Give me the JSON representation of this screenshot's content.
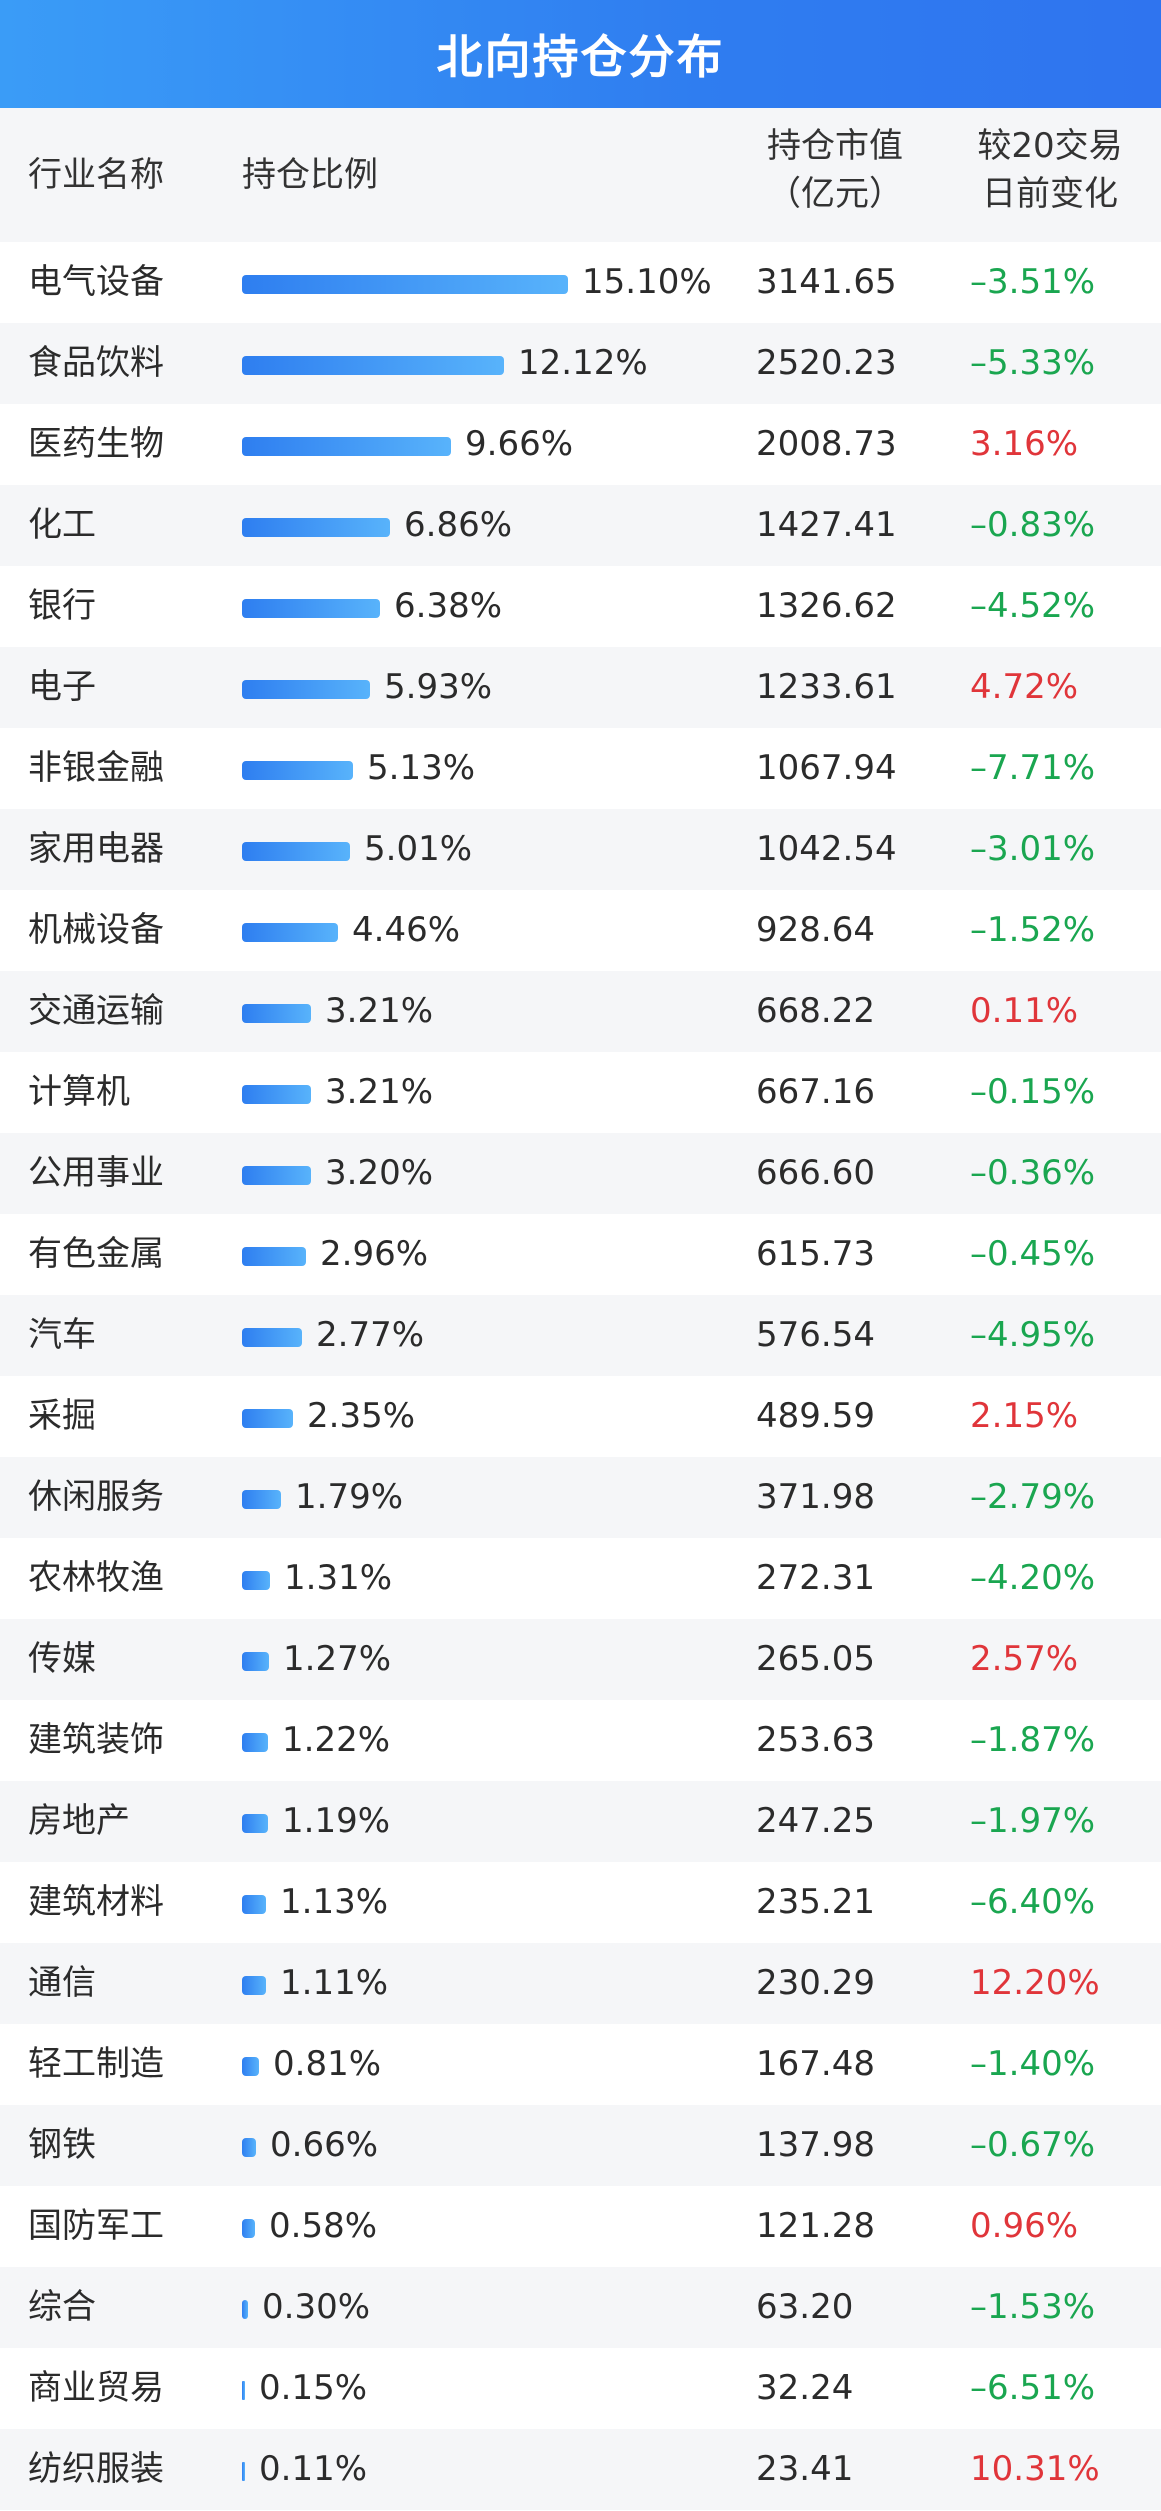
{
  "title": "北向持仓分布",
  "header": {
    "industry": "行业名称",
    "ratio": "持仓比例",
    "value_line1": "持仓市值",
    "value_line2": "（亿元）",
    "change_line1": "较20交易",
    "change_line2": "日前变化"
  },
  "colors": {
    "title_bg": "#2f7df0",
    "bar": "#3a8ff3",
    "negative": "#1aa650",
    "positive": "#e0353a"
  },
  "chart_data": {
    "type": "bar",
    "title": "北向持仓分布",
    "series": [
      {
        "values": [
          15.1,
          12.12,
          9.66,
          6.86,
          6.38,
          5.93,
          5.13,
          5.01,
          4.46,
          3.21,
          3.21,
          3.2,
          2.96,
          2.77,
          2.35,
          1.79,
          1.31,
          1.27,
          1.22,
          1.19,
          1.13,
          1.11,
          0.81,
          0.66,
          0.58,
          0.3,
          0.15,
          0.11
        ]
      }
    ],
    "rows": [
      {
        "name": "电气设备",
        "pct": 15.1,
        "pct_label": "15.10%",
        "value": "3141.65",
        "change": "–3.51%",
        "sign": "neg"
      },
      {
        "name": "食品饮料",
        "pct": 12.12,
        "pct_label": "12.12%",
        "value": "2520.23",
        "change": "–5.33%",
        "sign": "neg"
      },
      {
        "name": "医药生物",
        "pct": 9.66,
        "pct_label": "9.66%",
        "value": "2008.73",
        "change": "3.16%",
        "sign": "pos"
      },
      {
        "name": "化工",
        "pct": 6.86,
        "pct_label": "6.86%",
        "value": "1427.41",
        "change": "–0.83%",
        "sign": "neg"
      },
      {
        "name": "银行",
        "pct": 6.38,
        "pct_label": "6.38%",
        "value": "1326.62",
        "change": "–4.52%",
        "sign": "neg"
      },
      {
        "name": "电子",
        "pct": 5.93,
        "pct_label": "5.93%",
        "value": "1233.61",
        "change": "4.72%",
        "sign": "pos"
      },
      {
        "name": "非银金融",
        "pct": 5.13,
        "pct_label": "5.13%",
        "value": "1067.94",
        "change": "–7.71%",
        "sign": "neg"
      },
      {
        "name": "家用电器",
        "pct": 5.01,
        "pct_label": "5.01%",
        "value": "1042.54",
        "change": "–3.01%",
        "sign": "neg"
      },
      {
        "name": "机械设备",
        "pct": 4.46,
        "pct_label": "4.46%",
        "value": "928.64",
        "change": "–1.52%",
        "sign": "neg"
      },
      {
        "name": "交通运输",
        "pct": 3.21,
        "pct_label": "3.21%",
        "value": "668.22",
        "change": "0.11%",
        "sign": "pos"
      },
      {
        "name": "计算机",
        "pct": 3.21,
        "pct_label": "3.21%",
        "value": "667.16",
        "change": "–0.15%",
        "sign": "neg"
      },
      {
        "name": "公用事业",
        "pct": 3.2,
        "pct_label": "3.20%",
        "value": "666.60",
        "change": "–0.36%",
        "sign": "neg"
      },
      {
        "name": "有色金属",
        "pct": 2.96,
        "pct_label": "2.96%",
        "value": "615.73",
        "change": "–0.45%",
        "sign": "neg"
      },
      {
        "name": "汽车",
        "pct": 2.77,
        "pct_label": "2.77%",
        "value": "576.54",
        "change": "–4.95%",
        "sign": "neg"
      },
      {
        "name": "采掘",
        "pct": 2.35,
        "pct_label": "2.35%",
        "value": "489.59",
        "change": "2.15%",
        "sign": "pos"
      },
      {
        "name": "休闲服务",
        "pct": 1.79,
        "pct_label": "1.79%",
        "value": "371.98",
        "change": "–2.79%",
        "sign": "neg"
      },
      {
        "name": "农林牧渔",
        "pct": 1.31,
        "pct_label": "1.31%",
        "value": "272.31",
        "change": "–4.20%",
        "sign": "neg"
      },
      {
        "name": "传媒",
        "pct": 1.27,
        "pct_label": "1.27%",
        "value": "265.05",
        "change": "2.57%",
        "sign": "pos"
      },
      {
        "name": "建筑装饰",
        "pct": 1.22,
        "pct_label": "1.22%",
        "value": "253.63",
        "change": "–1.87%",
        "sign": "neg"
      },
      {
        "name": "房地产",
        "pct": 1.19,
        "pct_label": "1.19%",
        "value": "247.25",
        "change": "–1.97%",
        "sign": "neg"
      },
      {
        "name": "建筑材料",
        "pct": 1.13,
        "pct_label": "1.13%",
        "value": "235.21",
        "change": "–6.40%",
        "sign": "neg"
      },
      {
        "name": "通信",
        "pct": 1.11,
        "pct_label": "1.11%",
        "value": "230.29",
        "change": "12.20%",
        "sign": "pos"
      },
      {
        "name": "轻工制造",
        "pct": 0.81,
        "pct_label": "0.81%",
        "value": "167.48",
        "change": "–1.40%",
        "sign": "neg"
      },
      {
        "name": "钢铁",
        "pct": 0.66,
        "pct_label": "0.66%",
        "value": "137.98",
        "change": "–0.67%",
        "sign": "neg"
      },
      {
        "name": "国防军工",
        "pct": 0.58,
        "pct_label": "0.58%",
        "value": "121.28",
        "change": "0.96%",
        "sign": "pos"
      },
      {
        "name": "综合",
        "pct": 0.3,
        "pct_label": "0.30%",
        "value": "63.20",
        "change": "–1.53%",
        "sign": "neg"
      },
      {
        "name": "商业贸易",
        "pct": 0.15,
        "pct_label": "0.15%",
        "value": "32.24",
        "change": "–6.51%",
        "sign": "neg"
      },
      {
        "name": "纺织服装",
        "pct": 0.11,
        "pct_label": "0.11%",
        "value": "23.41",
        "change": "10.31%",
        "sign": "pos"
      }
    ]
  }
}
